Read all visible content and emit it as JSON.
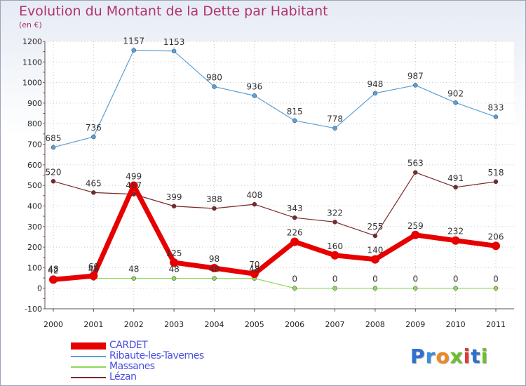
{
  "header": {
    "title": "Evolution du Montant de la Dette par Habitant",
    "subtitle": "(en €)"
  },
  "brand": {
    "letters": [
      "P",
      "r",
      "o",
      "x",
      "i",
      "t",
      "i"
    ],
    "colors": [
      "#2e6fd1",
      "#3a8ee0",
      "#f08a1c",
      "#6cc02b",
      "#e03a3a",
      "#2e6fd1",
      "#6cc02b"
    ]
  },
  "chart_data": {
    "type": "line",
    "title": "Evolution du Montant de la Dette par Habitant",
    "subtitle": "(en €)",
    "xlabel": "",
    "ylabel": "",
    "x": [
      "2000",
      "2001",
      "2002",
      "2003",
      "2004",
      "2005",
      "2006",
      "2007",
      "2008",
      "2009",
      "2010",
      "2011"
    ],
    "ylim": [
      -100,
      1200
    ],
    "yticks": [
      -100,
      0,
      100,
      200,
      300,
      400,
      500,
      600,
      700,
      800,
      900,
      1000,
      1100,
      1200
    ],
    "grid": true,
    "legend_position": "bottom-left",
    "series": [
      {
        "name": "CARDET",
        "color": "#e60000",
        "values": [
          42,
          60,
          499,
          125,
          98,
          70,
          226,
          160,
          140,
          259,
          232,
          206
        ],
        "labels": [
          "42",
          "60",
          "499",
          "125",
          "98",
          "70",
          "226",
          "160",
          "140",
          "259",
          "232",
          "206"
        ]
      },
      {
        "name": "Ribaute-les-Tavernes",
        "color": "#5aa0d8",
        "values": [
          685,
          736,
          1157,
          1153,
          980,
          936,
          815,
          778,
          948,
          987,
          902,
          833
        ],
        "labels": [
          "685",
          "736",
          "1157",
          "1153",
          "980",
          "936",
          "815",
          "778",
          "948",
          "987",
          "902",
          "833"
        ]
      },
      {
        "name": "Massanes",
        "color": "#8ed85a",
        "values": [
          48,
          48,
          48,
          48,
          48,
          48,
          0,
          0,
          0,
          0,
          0,
          0
        ],
        "labels": [
          "48",
          "48",
          "48",
          "48",
          "48",
          "48",
          "0",
          "0",
          "0",
          "0",
          "0",
          "0"
        ]
      },
      {
        "name": "Lézan",
        "color": "#7a2a2a",
        "values": [
          520,
          465,
          457,
          399,
          388,
          408,
          343,
          322,
          255,
          563,
          491,
          518
        ],
        "labels": [
          "520",
          "465",
          "457",
          "399",
          "388",
          "408",
          "343",
          "322",
          "255",
          "563",
          "491",
          "518"
        ]
      }
    ]
  }
}
